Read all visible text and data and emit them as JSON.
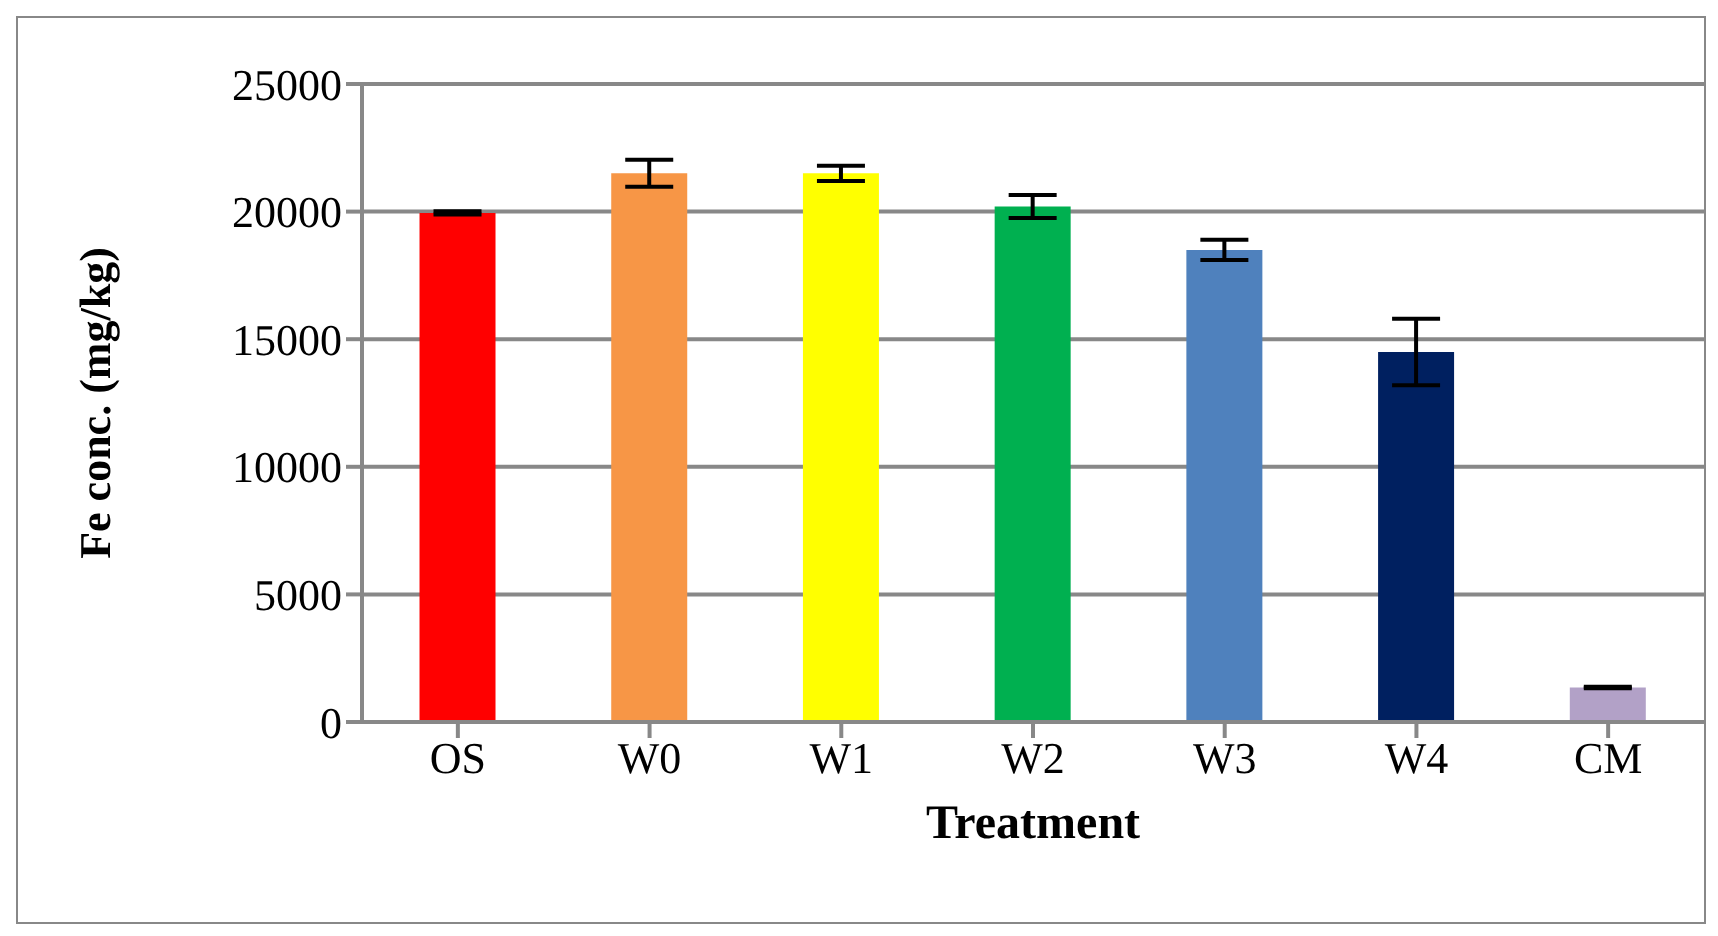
{
  "chart_data": {
    "type": "bar",
    "xlabel": "Treatment",
    "ylabel": "Fe conc. (mg/kg)",
    "categories": [
      "OS",
      "W0",
      "W1",
      "W2",
      "W3",
      "W4",
      "CM"
    ],
    "values": [
      19950,
      21500,
      21500,
      20200,
      18500,
      14500,
      1350
    ],
    "colors": [
      "#ff0000",
      "#f79646",
      "#ffff00",
      "#00b050",
      "#4f81bd",
      "#002060",
      "#b2a1c7"
    ],
    "errors": [
      60,
      530,
      300,
      450,
      400,
      1300,
      30
    ],
    "ylim": [
      0,
      25000
    ],
    "yticks": [
      0,
      5000,
      10000,
      15000,
      20000,
      25000
    ],
    "grid": "y"
  }
}
